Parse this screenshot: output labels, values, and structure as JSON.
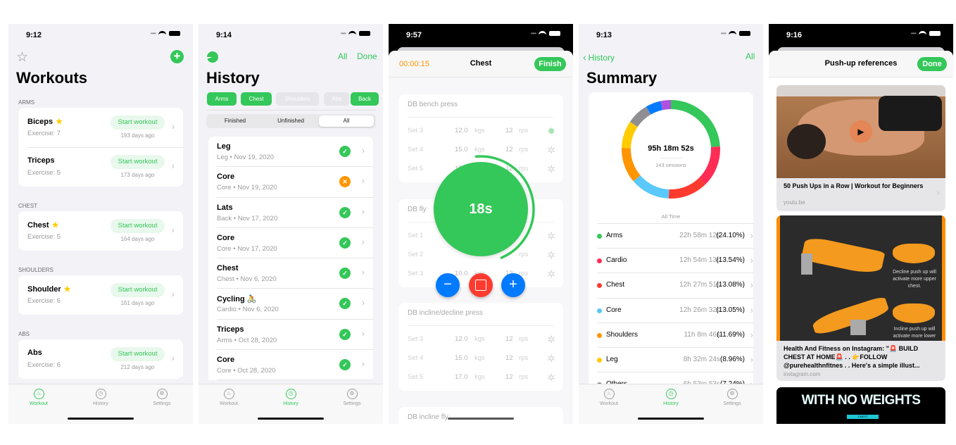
{
  "colors": {
    "accent": "#34c759",
    "orange": "#ff9500",
    "red": "#ff3b30",
    "blue": "#007aff"
  },
  "tabbar": [
    {
      "label": "Workout",
      "icon": "flame-icon"
    },
    {
      "label": "History",
      "icon": "clock-icon"
    },
    {
      "label": "Settings",
      "icon": "gear-icon"
    }
  ],
  "screen1": {
    "time": "9:12",
    "title": "Workouts",
    "star_icon": "star-icon",
    "add_icon": "plus-circle-icon",
    "sections": [
      {
        "header": "ARMS",
        "items": [
          {
            "name": "Biceps",
            "fav": true,
            "exercise": "Exercise:  7",
            "cta": "Start workout",
            "ago": "193 days ago"
          },
          {
            "name": "Triceps",
            "fav": false,
            "exercise": "Exercise:  5",
            "cta": "Start workout",
            "ago": "173 days ago"
          }
        ]
      },
      {
        "header": "CHEST",
        "items": [
          {
            "name": "Chest",
            "fav": true,
            "exercise": "Exercise:  5",
            "cta": "Start workout",
            "ago": "164 days ago"
          }
        ]
      },
      {
        "header": "SHOULDERS",
        "items": [
          {
            "name": "Shoulder",
            "fav": true,
            "exercise": "Exercise:  6",
            "cta": "Start workout",
            "ago": "161 days ago"
          }
        ]
      },
      {
        "header": "ABS",
        "items": [
          {
            "name": "Abs",
            "fav": false,
            "exercise": "Exercise:  6",
            "cta": "Start workout",
            "ago": "212 days ago"
          }
        ]
      }
    ],
    "active_tab": 0
  },
  "screen2": {
    "time": "9:14",
    "title": "History",
    "all": "All",
    "done": "Done",
    "chips": [
      {
        "label": "Arms",
        "on": true
      },
      {
        "label": "Chest",
        "on": true
      },
      {
        "label": "Shoulders",
        "on": false
      },
      {
        "label": "Abs",
        "on": false
      },
      {
        "label": "Back",
        "on": true
      }
    ],
    "segments": [
      "Finished",
      "Unfinished",
      "All"
    ],
    "selected_segment": 2,
    "rows": [
      {
        "name": "Leg",
        "sub": "Leg  •  Nov 19, 2020",
        "status": "done"
      },
      {
        "name": "Core",
        "sub": "Core  •  Nov 19, 2020",
        "status": "failed"
      },
      {
        "name": "Lats",
        "sub": "Back  •  Nov 17, 2020",
        "status": "done"
      },
      {
        "name": "Core",
        "sub": "Core  •  Nov 17, 2020",
        "status": "done"
      },
      {
        "name": "Chest",
        "sub": "Chest  •  Nov 6, 2020",
        "status": "done"
      },
      {
        "name": "Cycling 🚴",
        "sub": "Cardio  •  Nov 6, 2020",
        "status": "done"
      },
      {
        "name": "Triceps",
        "sub": "Arms  •  Oct 28, 2020",
        "status": "done"
      },
      {
        "name": "Core",
        "sub": "Core  •  Oct 28, 2020",
        "status": "done"
      }
    ],
    "active_tab": 1
  },
  "screen3": {
    "time": "9:57",
    "elapsed": "00:00:15",
    "title": "Chest",
    "finish": "Finish",
    "rest_timer": "18s",
    "rest_progress": 0.9,
    "exercises": [
      {
        "name": "DB bench press",
        "sets": [
          {
            "set": "Set 3",
            "kg": "12.0",
            "unit": "kgs",
            "reps": "12",
            "runit": "rps",
            "done": true
          },
          {
            "set": "Set 4",
            "kg": "15.0",
            "unit": "kgs",
            "reps": "12",
            "runit": "rps",
            "done": false
          },
          {
            "set": "Set 5",
            "kg": "17.0",
            "unit": "kgs",
            "reps": "12",
            "runit": "rps",
            "done": false
          }
        ]
      },
      {
        "name": "DB fly",
        "sets": [
          {
            "set": "Set 1",
            "kg": "",
            "unit": "",
            "reps": "",
            "runit": "",
            "done": false
          },
          {
            "set": "Set 2",
            "kg": "",
            "unit": "",
            "reps": "",
            "runit": "rps",
            "done": false
          },
          {
            "set": "Set 3",
            "kg": "10.0",
            "unit": "kgs",
            "reps": "12",
            "runit": "rps",
            "done": false
          }
        ]
      },
      {
        "name": "DB incline/decline press",
        "sets": [
          {
            "set": "Set 3",
            "kg": "12.0",
            "unit": "kgs",
            "reps": "12",
            "runit": "rps",
            "done": false
          },
          {
            "set": "Set 4",
            "kg": "15.0",
            "unit": "kgs",
            "reps": "12",
            "runit": "rps",
            "done": false
          },
          {
            "set": "Set 5",
            "kg": "17.0",
            "unit": "kgs",
            "reps": "12",
            "runit": "rps",
            "done": false
          }
        ]
      },
      {
        "name": "DB incline fly",
        "sets": []
      }
    ]
  },
  "screen4": {
    "time": "9:13",
    "back": "History",
    "all": "All",
    "title": "Summary",
    "total": "95h 18m 52s",
    "sessions": "143 sessions",
    "period": "All Time",
    "rows": [
      {
        "name": "Arms",
        "time": "22h 58m 12s",
        "pct": "(24.10%)",
        "color": "#34c759"
      },
      {
        "name": "Cardio",
        "time": "12h 54m 13s",
        "pct": "(13.54%)",
        "color": "#ff2d55"
      },
      {
        "name": "Chest",
        "time": "12h 27m 51s",
        "pct": "(13.08%)",
        "color": "#ff3b30"
      },
      {
        "name": "Core",
        "time": "12h 26m 32s",
        "pct": "(13.05%)",
        "color": "#5ac8fa"
      },
      {
        "name": "Shoulders",
        "time": "11h 8m 46s",
        "pct": "(11.69%)",
        "color": "#ff9500"
      },
      {
        "name": "Leg",
        "time": "8h 32m 24s",
        "pct": "(8.96%)",
        "color": "#ffcc00"
      },
      {
        "name": "Others",
        "time": "6h 53m 53s",
        "pct": "(7.24%)",
        "color": "#8e8e93"
      }
    ],
    "active_tab": 1
  },
  "chart_data": {
    "type": "pie",
    "categories": [
      "Arms",
      "Cardio",
      "Chest",
      "Core",
      "Shoulders",
      "Leg",
      "Others",
      "",
      ""
    ],
    "values": [
      24.1,
      13.54,
      13.08,
      13.05,
      11.69,
      8.96,
      7.24,
      5.0,
      3.34
    ],
    "colors": [
      "#34c759",
      "#ff2d55",
      "#ff3b30",
      "#5ac8fa",
      "#ff9500",
      "#ffcc00",
      "#8e8e93",
      "#007aff",
      "#af52de"
    ],
    "donut": true
  },
  "screen5": {
    "time": "9:16",
    "title": "Push-up references",
    "done": "Done",
    "links": [
      {
        "title": "50 Push Ups in a Row | Workout for Beginners",
        "source": "youtu.be",
        "video": true
      },
      {
        "title": "Health And Fitness on Instagram: \"🚨 BUILD CHEST AT HOME🚨 . . 👉FOLLOW @purehealthnfitnes  . . Here's a simple illust...",
        "source": "instagram.com",
        "image_text": [
          "Decline push up will activate more upper chest.",
          "Incline push up will activate more lower"
        ]
      },
      {
        "title": "",
        "source": "",
        "image_text": [
          "WITH NO WEIGHTS",
          "CHEST"
        ]
      }
    ]
  }
}
